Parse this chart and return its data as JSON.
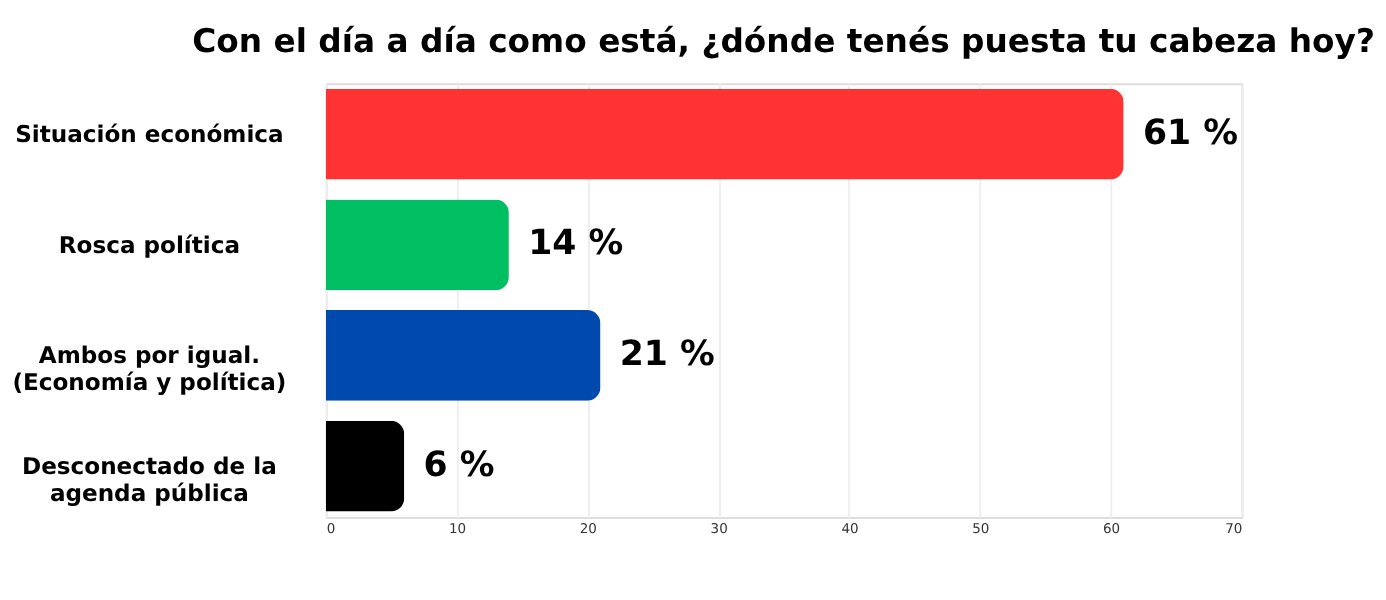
{
  "chart_data": {
    "type": "bar",
    "orientation": "horizontal",
    "title": "Con el día a día como está, ¿dónde tenés puesta tu cabeza hoy?",
    "categories": [
      "Situación económica",
      "Rosca política",
      "Ambos por igual.\n(Economía y política)",
      "Desconectado de la\nagenda pública"
    ],
    "values": [
      61,
      14,
      21,
      6
    ],
    "colors": [
      "#ff3333",
      "#00bf63",
      "#004aad",
      "#000000"
    ],
    "value_labels": [
      "61 %",
      "14 %",
      "21 %",
      "6 %"
    ],
    "xlim": [
      0,
      70
    ],
    "xticks": [
      0,
      10,
      20,
      30,
      40,
      50,
      60,
      70
    ],
    "grid": "x"
  }
}
